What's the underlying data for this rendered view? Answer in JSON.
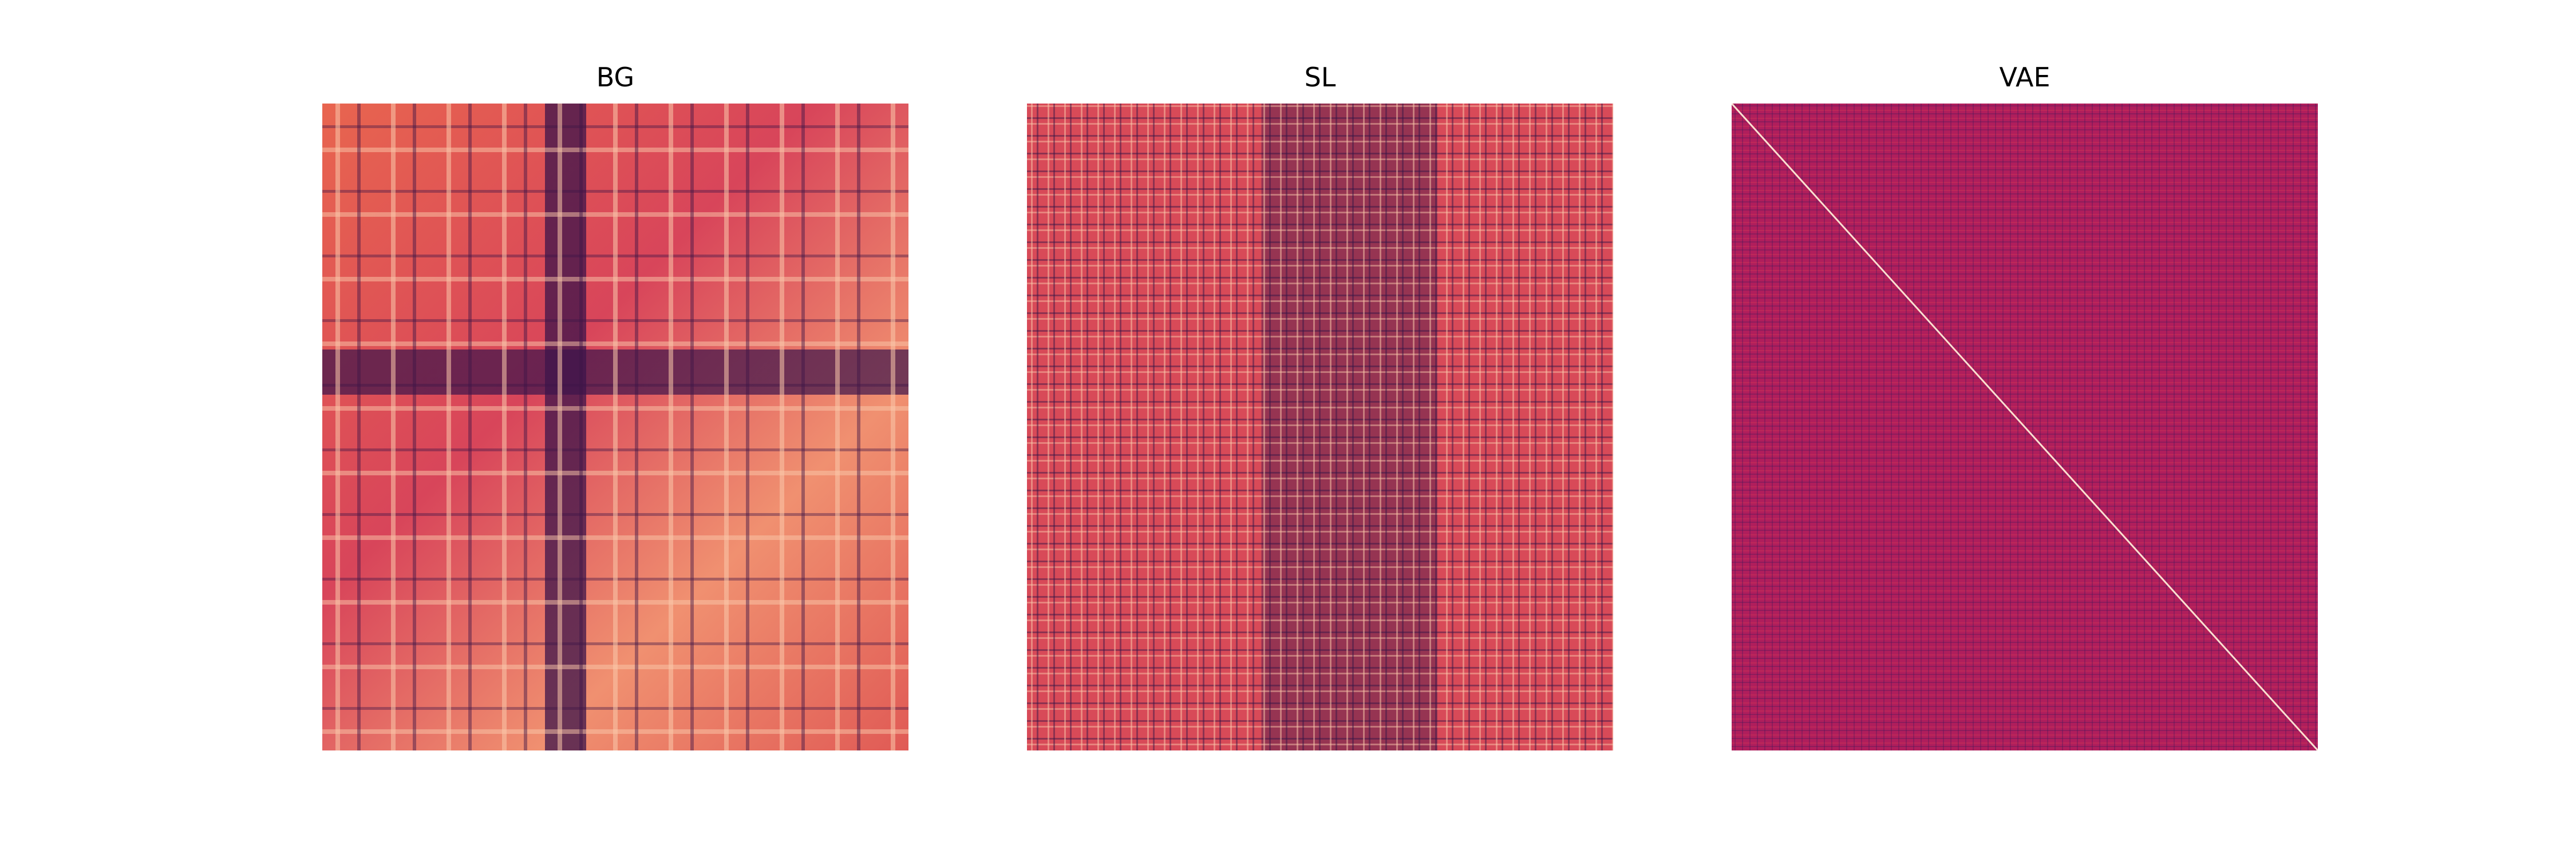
{
  "chart_data": [
    {
      "type": "heatmap",
      "title": "BG"
    },
    {
      "type": "heatmap",
      "title": "SL"
    },
    {
      "type": "heatmap",
      "title": "VAE"
    }
  ]
}
